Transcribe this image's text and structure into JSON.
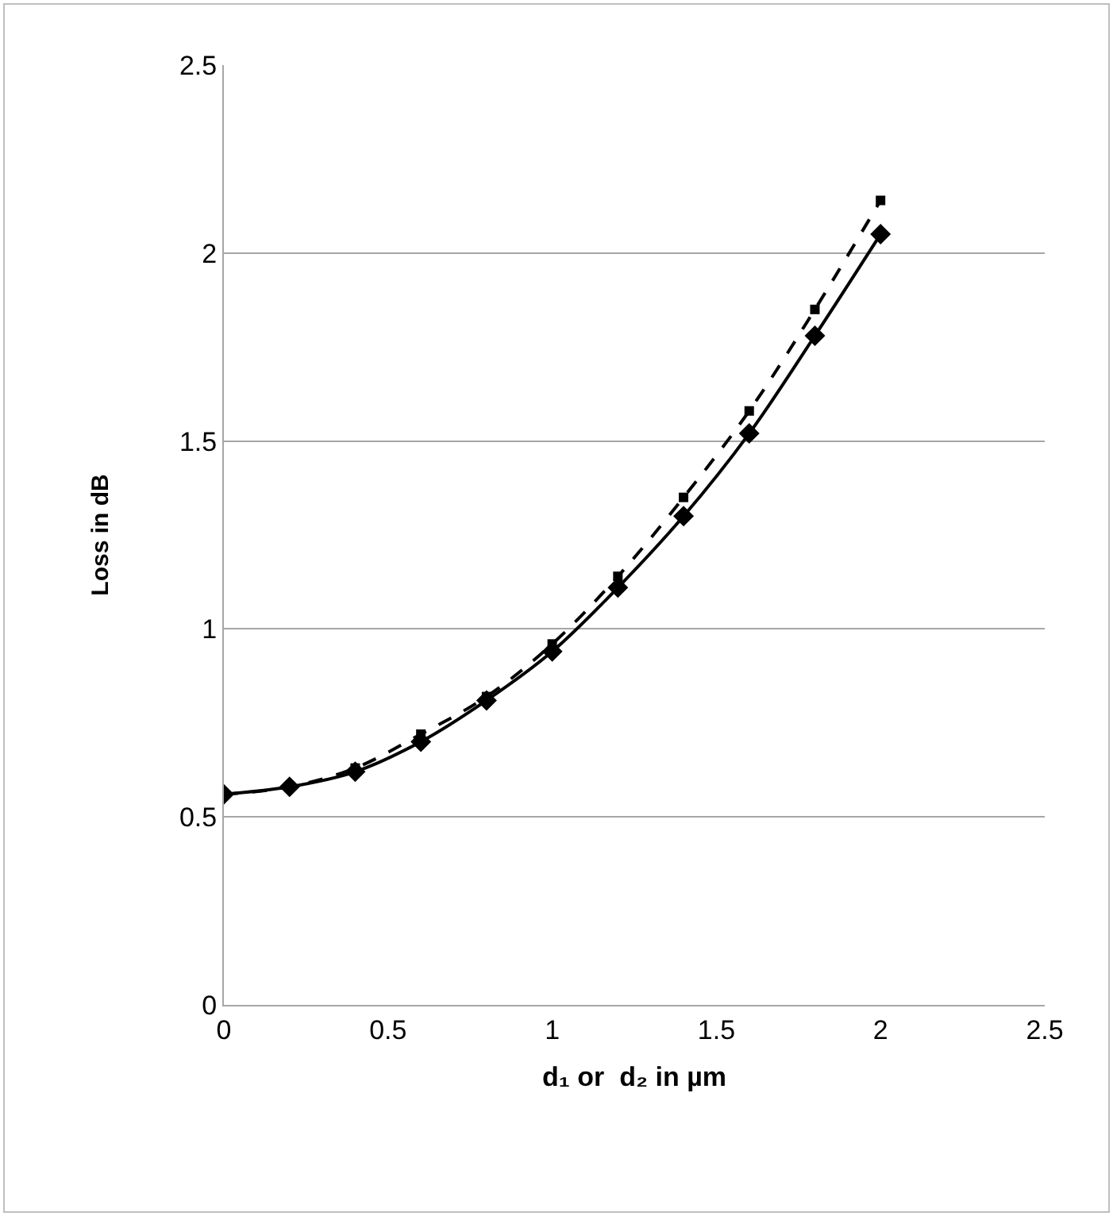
{
  "chart_data": {
    "type": "line",
    "xlabel": "d₁ or  d₂ in µm",
    "ylabel": "Loss in dB",
    "x": [
      0,
      0.2,
      0.4,
      0.6,
      0.8,
      1.0,
      1.2,
      1.4,
      1.6,
      1.8,
      2.0
    ],
    "series": [
      {
        "color": "#000000",
        "marker": "diamond",
        "line_style": "solid",
        "values": [
          0.56,
          0.58,
          0.62,
          0.7,
          0.81,
          0.94,
          1.11,
          1.3,
          1.52,
          1.78,
          2.05
        ]
      },
      {
        "color": "#000000",
        "marker": "square",
        "line_style": "dashed",
        "values": [
          0.56,
          0.58,
          0.63,
          0.72,
          0.82,
          0.96,
          1.14,
          1.35,
          1.58,
          1.85,
          2.14
        ]
      }
    ],
    "xlim": [
      0,
      2.5
    ],
    "xticks": [
      0,
      0.5,
      1,
      1.5,
      2,
      2.5
    ],
    "ylim": [
      0,
      2.5
    ],
    "yticks": [
      0,
      0.5,
      1,
      1.5,
      2,
      2.5
    ],
    "grid": "y"
  }
}
